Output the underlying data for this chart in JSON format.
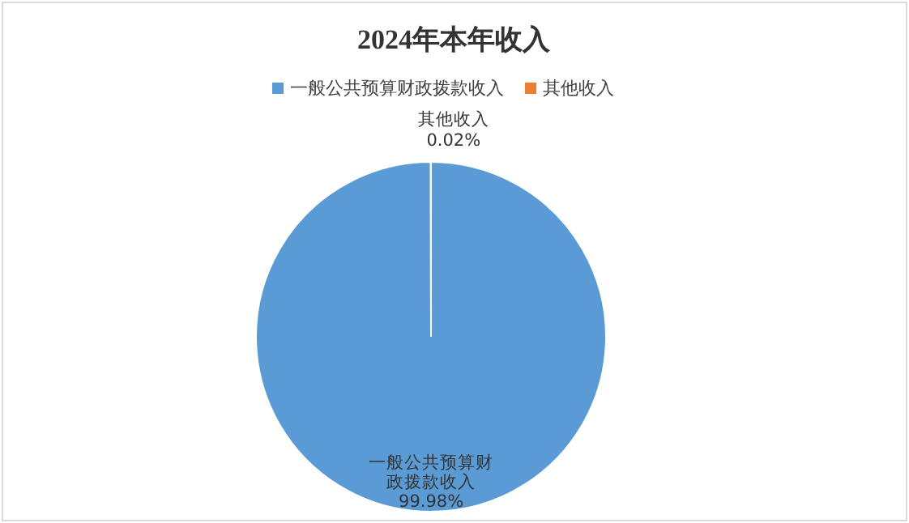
{
  "chart_data": {
    "type": "pie",
    "title": "2024年本年收入",
    "categories": [
      "一般公共预算财政拨款收入",
      "其他收入"
    ],
    "values": [
      99.98,
      0.02
    ],
    "colors": [
      "#5b9bd5",
      "#ed7d31"
    ],
    "value_labels": [
      "一般公共预算财政拨款收入\n99.98%",
      "其他收入\n0.02%"
    ],
    "legend": "top"
  }
}
